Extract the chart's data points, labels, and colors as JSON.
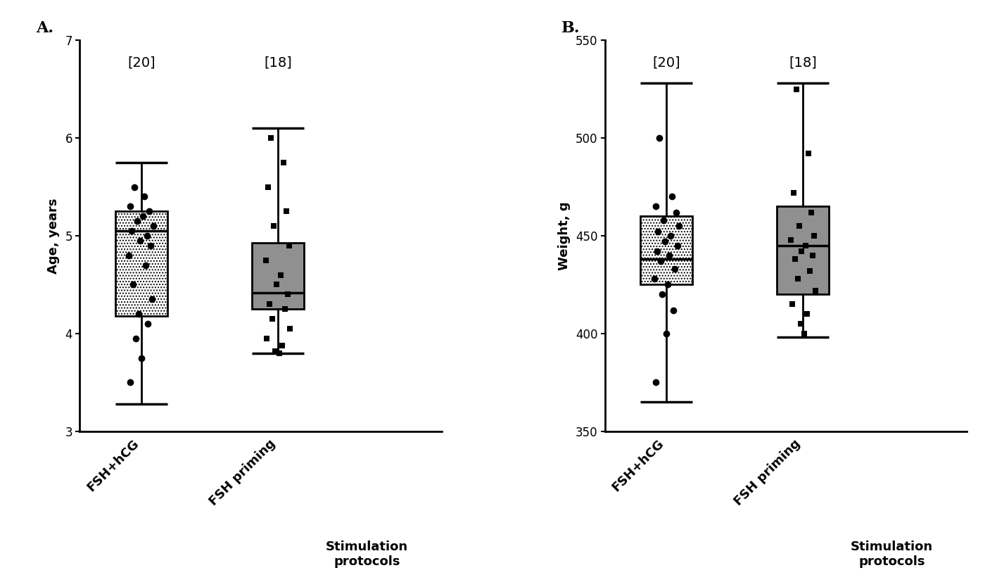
{
  "panel_A": {
    "label": "A.",
    "ylabel": "Age, years",
    "ylim": [
      3,
      7
    ],
    "yticks": [
      3,
      4,
      5,
      6,
      7
    ],
    "groups": [
      {
        "name": "FSH+hCG",
        "n": 20,
        "median": 5.05,
        "q1": 4.18,
        "q3": 5.25,
        "whisker_low": 3.28,
        "whisker_high": 5.75,
        "color": "white",
        "hatch": "....",
        "marker": "o",
        "jitter_x_offsets": [
          -0.05,
          0.02,
          -0.08,
          0.06,
          0.01,
          -0.03,
          0.09,
          -0.07,
          0.04,
          -0.01,
          0.07,
          -0.09,
          0.03,
          -0.06,
          0.08,
          -0.02,
          0.05,
          -0.04,
          0.0,
          -0.08
        ],
        "jitter_data": [
          5.5,
          5.4,
          5.3,
          5.25,
          5.2,
          5.15,
          5.1,
          5.05,
          5.0,
          4.95,
          4.9,
          4.8,
          4.7,
          4.5,
          4.35,
          4.2,
          4.1,
          3.95,
          3.75,
          3.5
        ]
      },
      {
        "name": "FSH priming",
        "n": 18,
        "median": 4.42,
        "q1": 4.25,
        "q3": 4.93,
        "whisker_low": 3.8,
        "whisker_high": 6.1,
        "color": "#909090",
        "hatch": "",
        "marker": "s",
        "jitter_x_offsets": [
          -0.05,
          0.04,
          -0.07,
          0.06,
          -0.03,
          0.08,
          -0.09,
          0.02,
          -0.01,
          0.07,
          -0.06,
          0.05,
          -0.04,
          0.09,
          -0.08,
          0.03,
          -0.02,
          0.01
        ],
        "jitter_data": [
          6.0,
          5.75,
          5.5,
          5.25,
          5.1,
          4.9,
          4.75,
          4.6,
          4.5,
          4.4,
          4.3,
          4.25,
          4.15,
          4.05,
          3.95,
          3.88,
          3.82,
          3.8
        ]
      }
    ]
  },
  "panel_B": {
    "label": "B.",
    "ylabel": "Weight, g",
    "ylim": [
      350,
      550
    ],
    "yticks": [
      350,
      400,
      450,
      500,
      550
    ],
    "groups": [
      {
        "name": "FSH+hCG",
        "n": 20,
        "median": 438,
        "q1": 425,
        "q3": 460,
        "whisker_low": 365,
        "whisker_high": 528,
        "color": "white",
        "hatch": "....",
        "marker": "o",
        "jitter_x_offsets": [
          -0.05,
          0.04,
          -0.08,
          0.07,
          -0.02,
          0.09,
          -0.06,
          0.03,
          -0.01,
          0.08,
          -0.07,
          0.02,
          -0.04,
          0.06,
          -0.09,
          0.01,
          -0.03,
          0.05,
          0.0,
          -0.08
        ],
        "jitter_data": [
          500,
          470,
          465,
          462,
          458,
          455,
          452,
          450,
          447,
          445,
          442,
          440,
          437,
          433,
          428,
          425,
          420,
          412,
          400,
          375
        ]
      },
      {
        "name": "FSH priming",
        "n": 18,
        "median": 445,
        "q1": 420,
        "q3": 465,
        "whisker_low": 398,
        "whisker_high": 528,
        "color": "#909090",
        "hatch": "",
        "marker": "s",
        "jitter_x_offsets": [
          -0.05,
          0.04,
          -0.07,
          0.06,
          -0.03,
          0.08,
          -0.09,
          0.02,
          -0.01,
          0.07,
          -0.06,
          0.05,
          -0.04,
          0.09,
          -0.08,
          0.03,
          -0.02,
          0.01
        ],
        "jitter_data": [
          525,
          492,
          472,
          462,
          455,
          450,
          448,
          445,
          442,
          440,
          438,
          432,
          428,
          422,
          415,
          410,
          405,
          400
        ]
      }
    ]
  },
  "box_width": 0.38,
  "fontsize_ylabel": 13,
  "fontsize_tick": 12,
  "fontsize_n": 14,
  "fontsize_panel": 16,
  "fontsize_xlabel": 13,
  "background_color": "#ffffff",
  "positions": [
    1,
    2
  ],
  "xlim": [
    0.55,
    3.2
  ]
}
